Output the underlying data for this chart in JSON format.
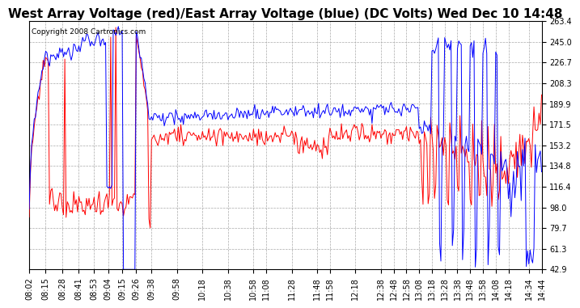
{
  "title": "West Array Voltage (red)/East Array Voltage (blue) (DC Volts) Wed Dec 10 14:48",
  "copyright": "Copyright 2008 Cartronics.com",
  "background_color": "#ffffff",
  "plot_bg_color": "#ffffff",
  "grid_color": "#aaaaaa",
  "red_color": "#ff0000",
  "blue_color": "#0000ff",
  "ylim": [
    42.9,
    263.4
  ],
  "yticks": [
    42.9,
    61.3,
    79.7,
    98.0,
    116.4,
    134.8,
    153.2,
    171.5,
    189.9,
    208.3,
    226.7,
    245.0,
    263.4
  ],
  "title_fontsize": 11,
  "copyright_fontsize": 6.5,
  "tick_fontsize": 7,
  "tick_labels": [
    "08:02",
    "08:15",
    "08:28",
    "08:41",
    "08:53",
    "09:04",
    "09:15",
    "09:26",
    "09:38",
    "09:58",
    "10:18",
    "10:38",
    "10:58",
    "11:08",
    "11:28",
    "11:48",
    "11:58",
    "12:18",
    "12:38",
    "12:48",
    "12:58",
    "13:08",
    "13:18",
    "13:28",
    "13:38",
    "13:48",
    "13:58",
    "14:08",
    "14:18",
    "14:34",
    "14:44"
  ]
}
